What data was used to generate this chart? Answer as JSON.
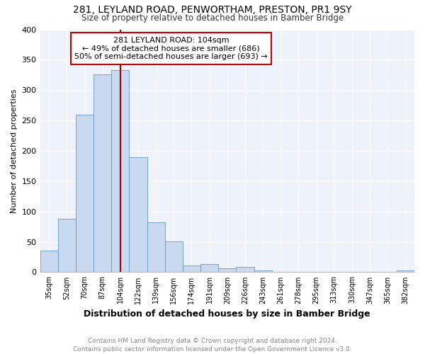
{
  "title": "281, LEYLAND ROAD, PENWORTHAM, PRESTON, PR1 9SY",
  "subtitle": "Size of property relative to detached houses in Bamber Bridge",
  "xlabel": "Distribution of detached houses by size in Bamber Bridge",
  "ylabel": "Number of detached properties",
  "categories": [
    "35sqm",
    "52sqm",
    "70sqm",
    "87sqm",
    "104sqm",
    "122sqm",
    "139sqm",
    "156sqm",
    "174sqm",
    "191sqm",
    "209sqm",
    "226sqm",
    "243sqm",
    "261sqm",
    "278sqm",
    "295sqm",
    "313sqm",
    "330sqm",
    "347sqm",
    "365sqm",
    "382sqm"
  ],
  "values": [
    35,
    88,
    260,
    326,
    333,
    190,
    82,
    51,
    11,
    13,
    6,
    9,
    3,
    1,
    1,
    0,
    0,
    0,
    0,
    1,
    3
  ],
  "bar_color": "#c8d9f0",
  "bar_edge_color": "#6699cc",
  "vline_x": 4,
  "vline_color": "#aa0000",
  "annotation_text": "281 LEYLAND ROAD: 104sqm\n← 49% of detached houses are smaller (686)\n50% of semi-detached houses are larger (693) →",
  "annotation_box_color": "#ffffff",
  "annotation_box_edge": "#cc0000",
  "footer": "Contains HM Land Registry data © Crown copyright and database right 2024.\nContains public sector information licensed under the Open Government Licence v3.0.",
  "background_color": "#eef2fa",
  "ylim": [
    0,
    400
  ],
  "yticks": [
    0,
    50,
    100,
    150,
    200,
    250,
    300,
    350,
    400
  ]
}
